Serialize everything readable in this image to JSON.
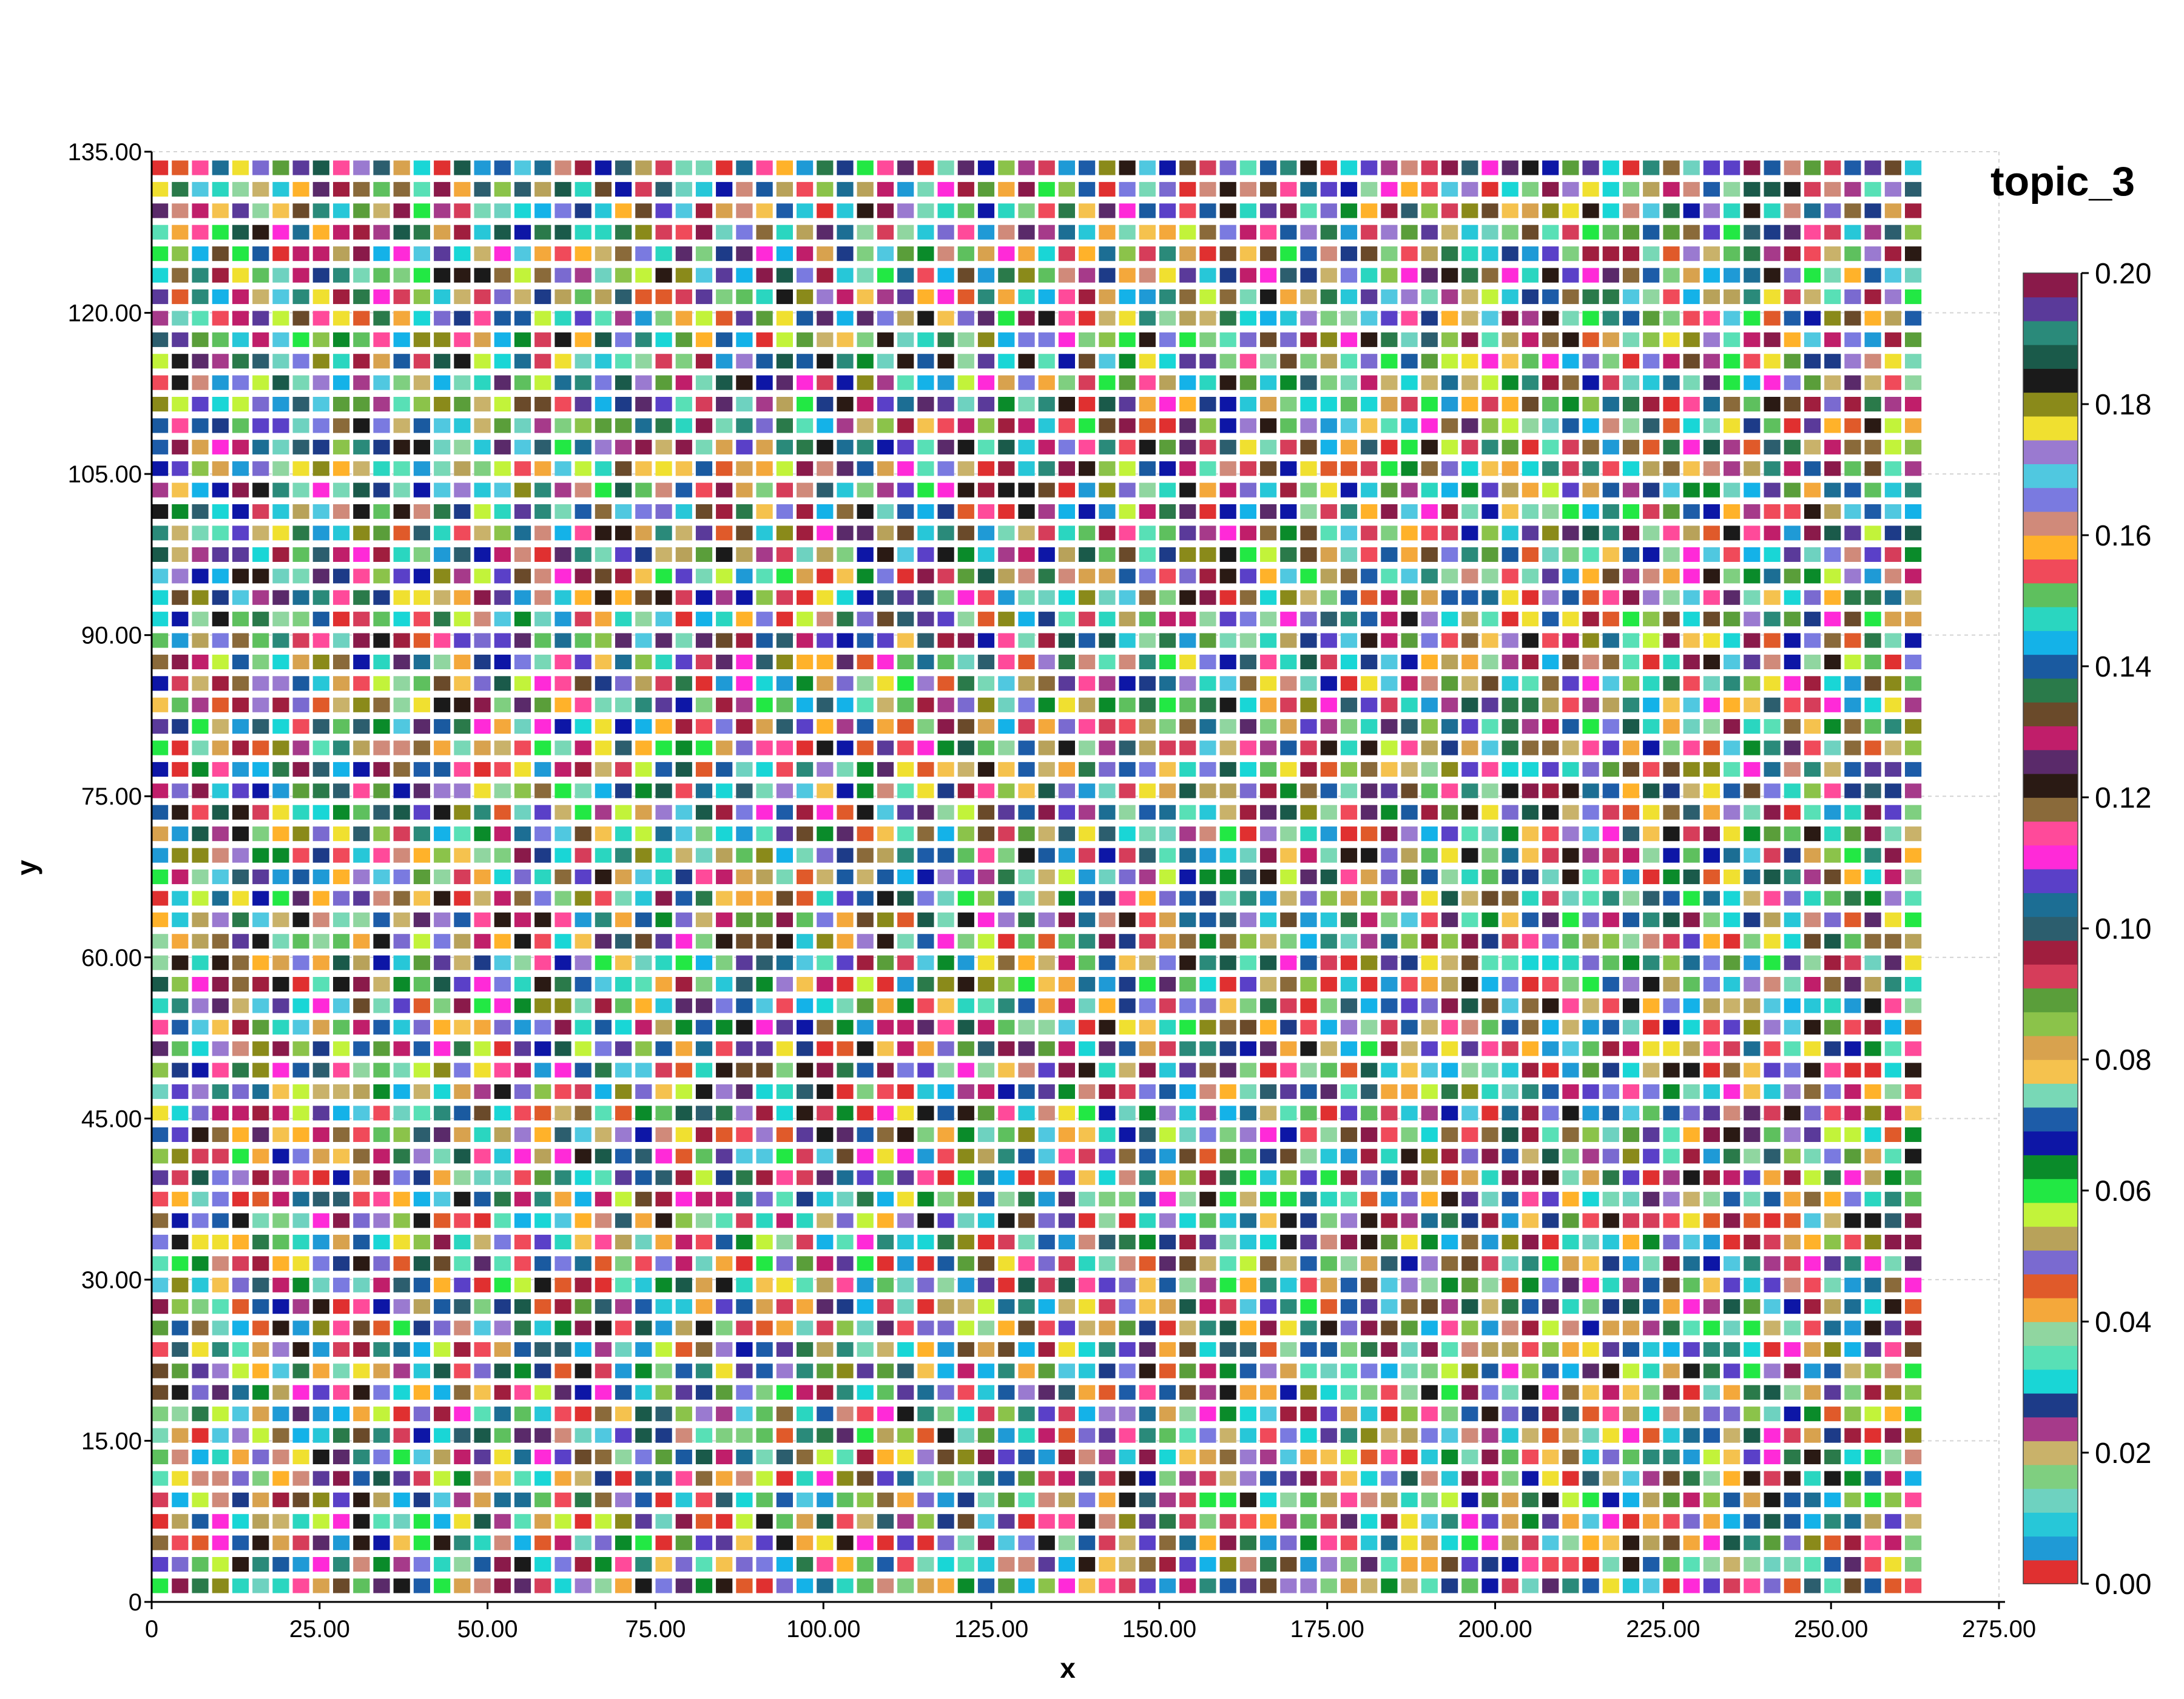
{
  "chart_data": {
    "type": "heatmap",
    "title": "",
    "xlabel": "x",
    "ylabel": "y",
    "xlim": [
      0,
      275
    ],
    "ylim": [
      0,
      135
    ],
    "x_ticks": [
      "0",
      "25.00",
      "50.00",
      "75.00",
      "100.00",
      "125.00",
      "150.00",
      "175.00",
      "200.00",
      "225.00",
      "250.00",
      "275.00"
    ],
    "y_ticks": [
      "0",
      "15.00",
      "30.00",
      "45.00",
      "60.00",
      "75.00",
      "90.00",
      "105.00",
      "120.00",
      "135.00"
    ],
    "grid": {
      "x_start": 0,
      "x_step": 3,
      "x_count": 88,
      "y_start": 1.5,
      "y_step": 2,
      "y_count": 67,
      "pattern_seed": 3,
      "value_distribution": "uniform pseudo-random over colorbar range"
    },
    "colorbar": {
      "title": "topic_3",
      "range": [
        0.0,
        0.2
      ],
      "labels": [
        "0.00",
        "0.02",
        "0.04",
        "0.06",
        "0.08",
        "0.10",
        "0.12",
        "0.14",
        "0.16",
        "0.18",
        "0.20"
      ],
      "colors": [
        "#e03030",
        "#1f9ad6",
        "#27c7d8",
        "#6ed2c0",
        "#7fcf80",
        "#c9b26a",
        "#a63a8a",
        "#1d3b88",
        "#19d6d6",
        "#58e0b6",
        "#90d6a0",
        "#f4a83b",
        "#e05a2a",
        "#7a6ad0",
        "#b8a25a",
        "#c2f33a",
        "#22e844",
        "#0a8b2a",
        "#0d16a6",
        "#1d5ca8",
        "#78d8b6",
        "#f5c24e",
        "#d8a24e",
        "#8bc34a",
        "#5a9e3a",
        "#d63d5a",
        "#a01e3e",
        "#2c5e6e",
        "#1c6e94",
        "#5a40c8",
        "#ff2ad8",
        "#ff4a9a",
        "#8a6a3a",
        "#2a1a14",
        "#5a2a6a",
        "#c01e6a",
        "#6a4a2a",
        "#2a7a4a",
        "#1a5aa0",
        "#14b2e8",
        "#2ad6c0",
        "#5ec05e",
        "#f04a5a",
        "#ffb22a",
        "#d08a7a",
        "#7a7ae0",
        "#50c8e0",
        "#9a7ad0",
        "#f0e030",
        "#8a8a1a",
        "#1a1a1a",
        "#1a5a4a",
        "#2a8a7a",
        "#5a3a9a",
        "#8a1a4a"
      ]
    }
  }
}
